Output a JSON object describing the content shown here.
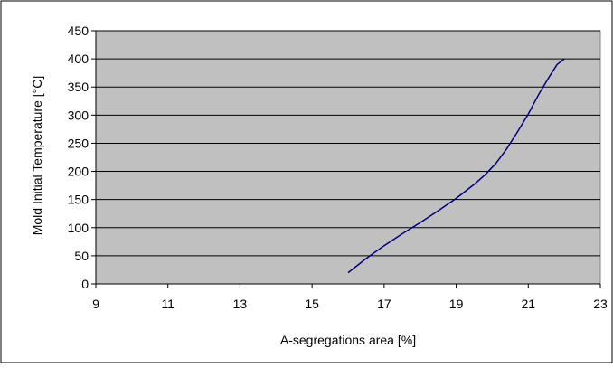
{
  "chart_data": {
    "type": "line",
    "title": "",
    "xlabel": "A-segregations area [%]",
    "ylabel": "Mold Initial Temperature [°C]",
    "xlim": [
      9,
      23
    ],
    "ylim": [
      0,
      450
    ],
    "x_ticks": [
      9,
      11,
      13,
      15,
      17,
      19,
      21,
      23
    ],
    "y_ticks": [
      0,
      50,
      100,
      150,
      200,
      250,
      300,
      350,
      400,
      450
    ],
    "grid": "horizontal",
    "legend": "none",
    "colors": {
      "plot_background": "#c0c0c0",
      "line": "#000080",
      "grid": "#000000"
    },
    "series": [
      {
        "x": [
          16.0,
          16.5,
          17.0,
          17.5,
          18.0,
          18.5,
          19.0,
          19.5,
          19.8,
          20.1,
          20.4,
          20.7,
          21.0,
          21.3,
          21.6,
          21.8,
          22.0
        ],
        "y": [
          20,
          45,
          68,
          89,
          109,
          130,
          152,
          177,
          194,
          214,
          240,
          270,
          302,
          338,
          370,
          390,
          400
        ]
      }
    ]
  }
}
